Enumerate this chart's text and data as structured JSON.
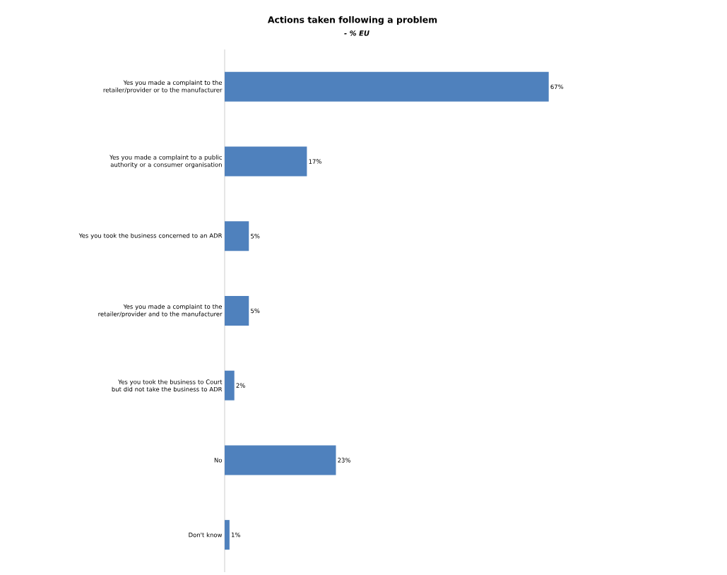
{
  "chart_data": {
    "type": "bar",
    "orientation": "horizontal",
    "title": "Actions taken following a problem",
    "subtitle": "- % EU",
    "categories": [
      "Yes you made a complaint to the retailer/provider or to the manufacturer",
      "Yes you made a complaint to a public authority or a consumer organisation",
      "Yes you took the business concerned to an ADR",
      "Yes you made a complaint to the retailer/provider and to the manufacturer",
      "Yes you took the business to Court but did not take the business to ADR",
      "No",
      "Don't know"
    ],
    "values": [
      67,
      17,
      5,
      5,
      2,
      23,
      1
    ],
    "value_labels": [
      "67%",
      "17%",
      "5%",
      "5%",
      "2%",
      "23%",
      "1%"
    ],
    "color": "#4f81bd"
  }
}
